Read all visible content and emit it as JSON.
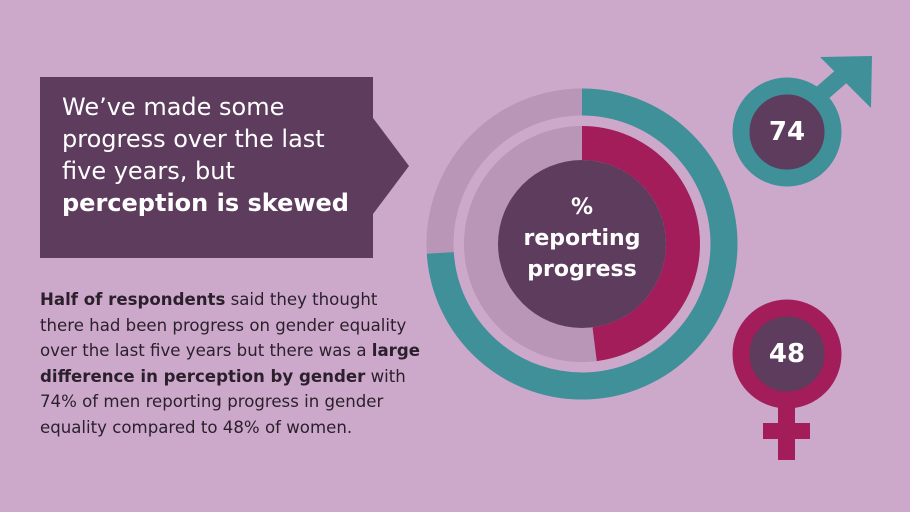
{
  "headline": {
    "lines": [
      "We’ve made some",
      "progress over the last",
      "five years, but"
    ],
    "bold": "perception is skewed"
  },
  "body": {
    "b1": "Half of respondents",
    "t1": " said they thought there had been progress on gender equality over the last five years but there was a ",
    "b2": "large difference in perception by gender",
    "t2": " with 74% of men reporting progress in gender equality compared to 48% of women."
  },
  "chart_data": {
    "type": "pie",
    "title": "% reporting progress",
    "series": [
      {
        "name": "Men",
        "value": 74,
        "color": "#3f9099",
        "icon": "male-symbol-icon"
      },
      {
        "name": "Women",
        "value": 48,
        "color": "#a21d5a",
        "icon": "female-symbol-icon"
      }
    ],
    "ylim": [
      0,
      100
    ]
  },
  "colors": {
    "background": "#cca9cb",
    "dark_purple": "#5d3c5d",
    "ring_track": "#b995b8",
    "men": "#3f9099",
    "women": "#a21d5a"
  }
}
